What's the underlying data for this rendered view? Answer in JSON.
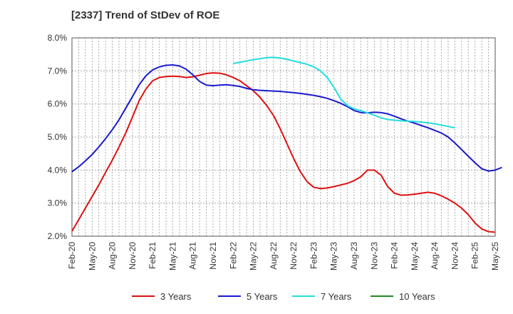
{
  "chart_data": {
    "type": "line",
    "title": "[2337]  Trend of StDev of ROE",
    "xlabel": "",
    "ylabel": "",
    "ylim": [
      2.0,
      8.0
    ],
    "y_ticks": [
      "2.0%",
      "3.0%",
      "4.0%",
      "5.0%",
      "6.0%",
      "7.0%",
      "8.0%"
    ],
    "x_ticks": [
      "Feb-20",
      "May-20",
      "Aug-20",
      "Nov-20",
      "Feb-21",
      "May-21",
      "Aug-21",
      "Nov-21",
      "Feb-22",
      "May-22",
      "Aug-22",
      "Nov-22",
      "Feb-23",
      "May-23",
      "Aug-23",
      "Nov-23",
      "Feb-24",
      "May-24",
      "Aug-24",
      "Nov-24",
      "Feb-25",
      "May-25"
    ],
    "grid": true,
    "legend_position": "bottom",
    "series": [
      {
        "name": "3 Years",
        "color": "#dd1111",
        "start": "Feb-20",
        "values": [
          2.15,
          2.5,
          2.85,
          3.2,
          3.55,
          3.93,
          4.3,
          4.7,
          5.12,
          5.6,
          6.1,
          6.45,
          6.7,
          6.8,
          6.83,
          6.84,
          6.83,
          6.8,
          6.82,
          6.87,
          6.92,
          6.94,
          6.93,
          6.88,
          6.8,
          6.7,
          6.55,
          6.4,
          6.2,
          5.95,
          5.65,
          5.25,
          4.8,
          4.35,
          3.95,
          3.65,
          3.48,
          3.44,
          3.46,
          3.5,
          3.55,
          3.6,
          3.68,
          3.8,
          4.0,
          4.0,
          3.85,
          3.5,
          3.3,
          3.24,
          3.25,
          3.27,
          3.3,
          3.33,
          3.3,
          3.22,
          3.12,
          3.0,
          2.85,
          2.65,
          2.4,
          2.22,
          2.14,
          2.12
        ]
      },
      {
        "name": "5 Years",
        "color": "#1a1acc",
        "start": "Feb-20",
        "values": [
          3.95,
          4.1,
          4.28,
          4.47,
          4.7,
          4.95,
          5.22,
          5.52,
          5.87,
          6.22,
          6.58,
          6.85,
          7.03,
          7.12,
          7.17,
          7.18,
          7.15,
          7.05,
          6.88,
          6.68,
          6.57,
          6.55,
          6.57,
          6.58,
          6.56,
          6.53,
          6.47,
          6.43,
          6.41,
          6.4,
          6.39,
          6.38,
          6.36,
          6.34,
          6.32,
          6.29,
          6.26,
          6.22,
          6.17,
          6.1,
          6.02,
          5.92,
          5.8,
          5.74,
          5.73,
          5.75,
          5.74,
          5.7,
          5.63,
          5.55,
          5.48,
          5.42,
          5.35,
          5.28,
          5.2,
          5.12,
          5.0,
          4.82,
          4.62,
          4.42,
          4.22,
          4.04,
          3.97,
          4.0,
          4.08
        ]
      },
      {
        "name": "7 Years",
        "color": "#22dddd",
        "start": "Feb-22",
        "values": [
          7.22,
          7.26,
          7.3,
          7.34,
          7.37,
          7.4,
          7.41,
          7.39,
          7.35,
          7.3,
          7.25,
          7.2,
          7.12,
          7.0,
          6.8,
          6.5,
          6.15,
          5.95,
          5.85,
          5.8,
          5.73,
          5.66,
          5.58,
          5.53,
          5.51,
          5.49,
          5.48,
          5.47,
          5.45,
          5.43,
          5.4,
          5.36,
          5.32,
          5.28
        ]
      },
      {
        "name": "10 Years",
        "color": "#228822",
        "start": "",
        "values": []
      }
    ]
  }
}
